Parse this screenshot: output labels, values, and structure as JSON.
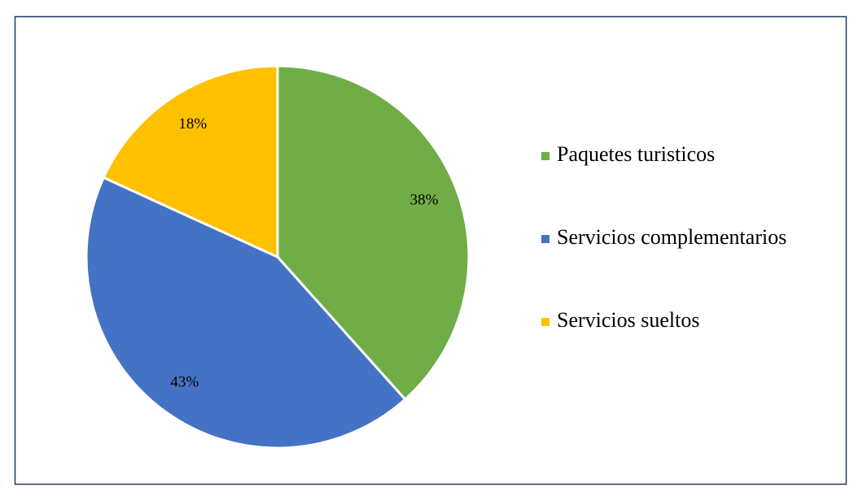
{
  "chart_data": {
    "type": "pie",
    "categories": [
      "Paquetes turisticos",
      "Servicios complementarios",
      "Servicios sueltos"
    ],
    "values": [
      38,
      43,
      18
    ],
    "value_labels": [
      "38%",
      "43%",
      "18%"
    ],
    "colors": [
      "#70ad47",
      "#4472c4",
      "#ffc000"
    ],
    "legend": "right"
  }
}
